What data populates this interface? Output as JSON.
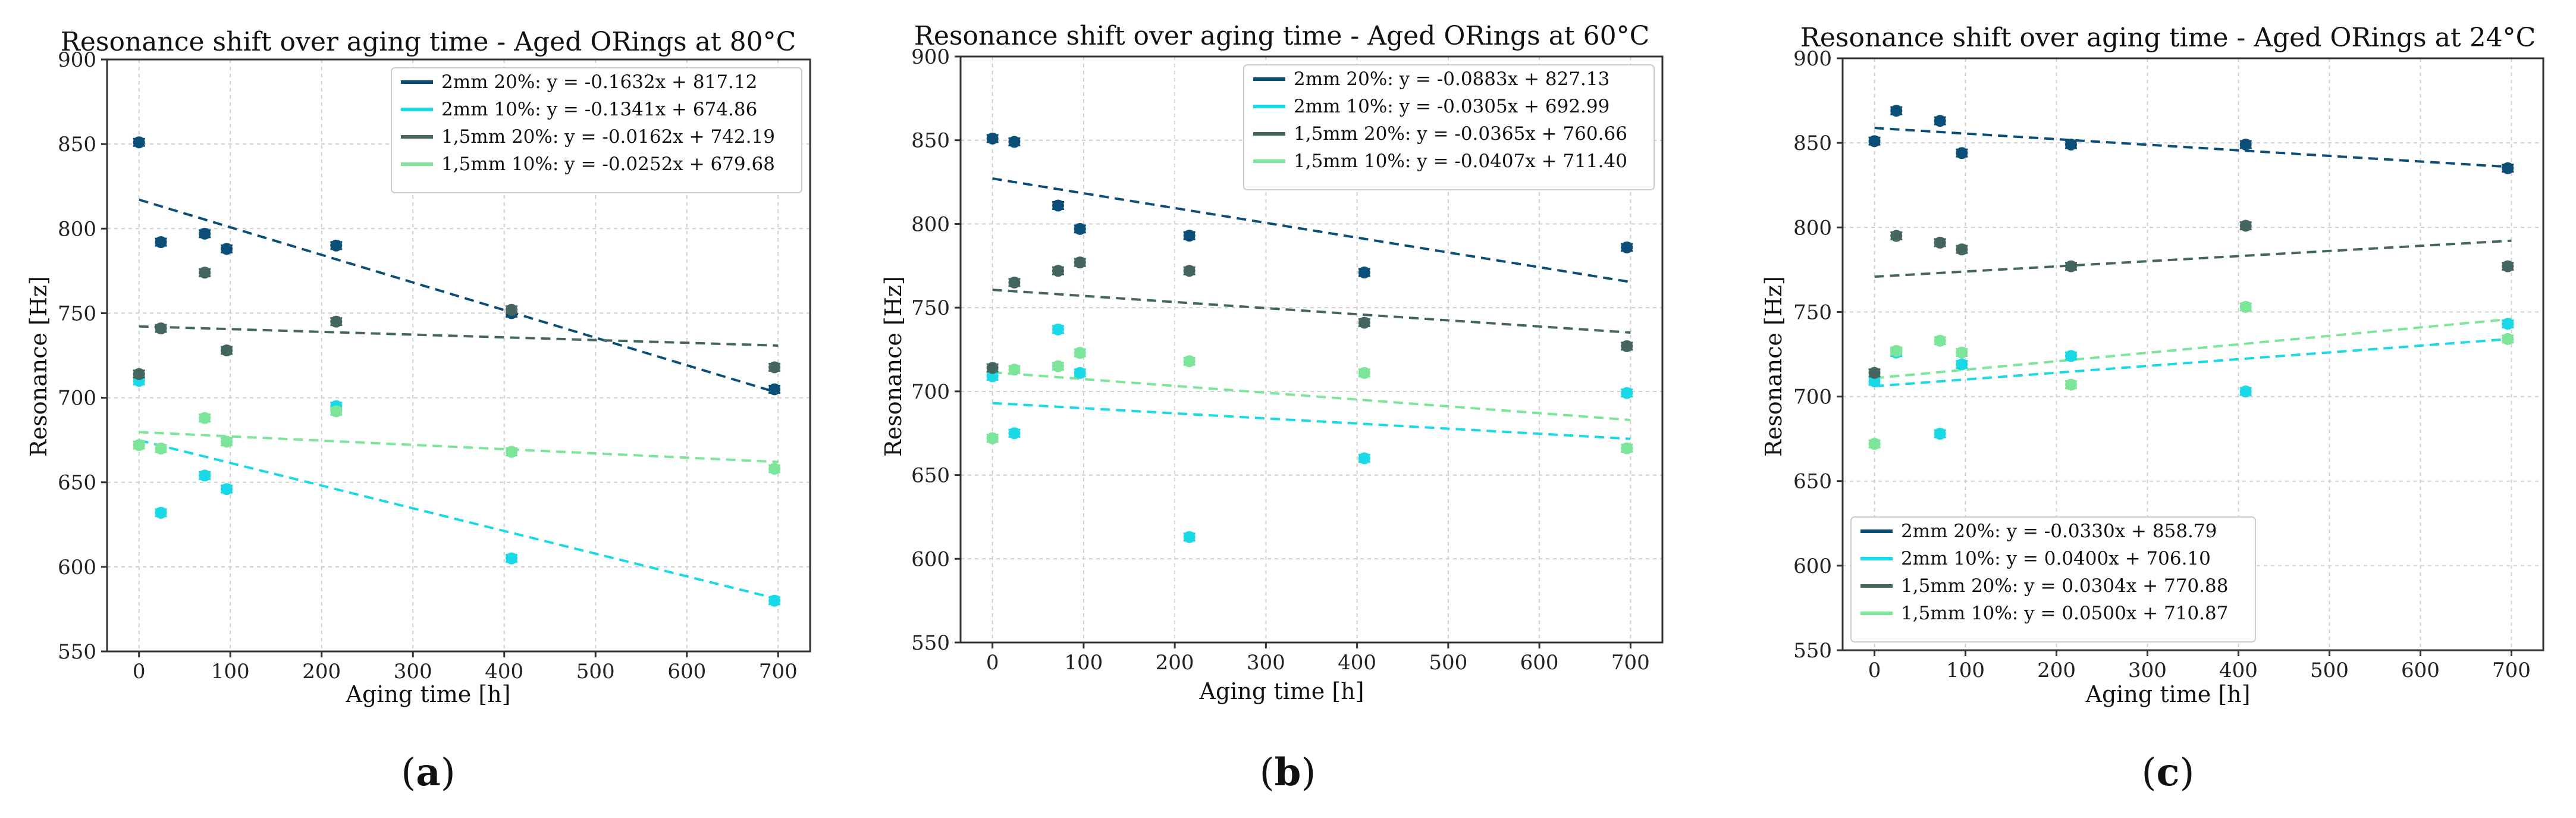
{
  "series_colors": {
    "2mm 20%": "#0b4f78",
    "2mm 10%": "#1ad9e6",
    "1,5mm 20%": "#456660",
    "1,5mm 10%": "#7de59a"
  },
  "chart_data": [
    {
      "type": "scatter",
      "panel_id": "a",
      "caption": "a",
      "title": "Resonance shift over aging time - Aged ORings at 80°C",
      "xlabel": "Aging time [h]",
      "ylabel": "Resonance [Hz]",
      "xlim": [
        -35,
        735
      ],
      "ylim": [
        550,
        900
      ],
      "xticks": [
        0,
        100,
        200,
        300,
        400,
        500,
        600,
        700
      ],
      "yticks": [
        550,
        600,
        650,
        700,
        750,
        800,
        850,
        900
      ],
      "grid": true,
      "legend_position": "top-right",
      "series": [
        {
          "name": "2mm 20%",
          "fit_label": "2mm 20%: y = -0.1632x + 817.12",
          "slope": -0.1632,
          "intercept": 817.12,
          "x": [
            0,
            24,
            72,
            96,
            216,
            408,
            696
          ],
          "y": [
            851,
            792,
            797,
            788,
            790,
            750,
            705
          ]
        },
        {
          "name": "2mm 10%",
          "fit_label": "2mm 10%: y = -0.1341x + 674.86",
          "slope": -0.1341,
          "intercept": 674.86,
          "x": [
            0,
            24,
            72,
            96,
            216,
            408,
            696
          ],
          "y": [
            710,
            632,
            654,
            646,
            695,
            605,
            580
          ]
        },
        {
          "name": "1,5mm 20%",
          "fit_label": "1,5mm 20%: y = -0.0162x + 742.19",
          "slope": -0.0162,
          "intercept": 742.19,
          "x": [
            0,
            24,
            72,
            96,
            216,
            408,
            696
          ],
          "y": [
            714,
            741,
            774,
            728,
            745,
            752,
            718
          ]
        },
        {
          "name": "1,5mm 10%",
          "fit_label": "1,5mm 10%: y = -0.0252x + 679.68",
          "slope": -0.0252,
          "intercept": 679.68,
          "x": [
            0,
            24,
            72,
            96,
            216,
            408,
            696
          ],
          "y": [
            672,
            670,
            688,
            674,
            692,
            668,
            658
          ]
        }
      ]
    },
    {
      "type": "scatter",
      "panel_id": "b",
      "caption": "b",
      "title": "Resonance shift over aging time - Aged ORings at 60°C",
      "xlabel": "Aging time [h]",
      "ylabel": "Resonance [Hz]",
      "xlim": [
        -35,
        735
      ],
      "ylim": [
        550,
        900
      ],
      "xticks": [
        0,
        100,
        200,
        300,
        400,
        500,
        600,
        700
      ],
      "yticks": [
        550,
        600,
        650,
        700,
        750,
        800,
        850,
        900
      ],
      "grid": true,
      "legend_position": "top-right",
      "series": [
        {
          "name": "2mm 20%",
          "fit_label": "2mm 20%: y = -0.0883x + 827.13",
          "slope": -0.0883,
          "intercept": 827.13,
          "x": [
            0,
            24,
            72,
            96,
            216,
            408,
            696
          ],
          "y": [
            851,
            849,
            811,
            797,
            793,
            771,
            786
          ]
        },
        {
          "name": "2mm 10%",
          "fit_label": "2mm 10%: y = -0.0305x + 692.99",
          "slope": -0.0305,
          "intercept": 692.99,
          "x": [
            0,
            24,
            72,
            96,
            216,
            408,
            696
          ],
          "y": [
            709,
            675,
            737,
            711,
            613,
            660,
            699
          ]
        },
        {
          "name": "1,5mm 20%",
          "fit_label": "1,5mm 20%: y = -0.0365x + 760.66",
          "slope": -0.0365,
          "intercept": 760.66,
          "x": [
            0,
            24,
            72,
            96,
            216,
            408,
            696
          ],
          "y": [
            714,
            765,
            772,
            777,
            772,
            741,
            727
          ]
        },
        {
          "name": "1,5mm 10%",
          "fit_label": "1,5mm 10%: y = -0.0407x + 711.40",
          "slope": -0.0407,
          "intercept": 711.4,
          "x": [
            0,
            24,
            72,
            96,
            216,
            408,
            696
          ],
          "y": [
            672,
            713,
            715,
            723,
            718,
            711,
            666
          ]
        }
      ]
    },
    {
      "type": "scatter",
      "panel_id": "c",
      "caption": "c",
      "title": "Resonance shift over aging time - Aged ORings at 24°C",
      "xlabel": "Aging time [h]",
      "ylabel": "Resonance [Hz]",
      "xlim": [
        -35,
        735
      ],
      "ylim": [
        550,
        900
      ],
      "xticks": [
        0,
        100,
        200,
        300,
        400,
        500,
        600,
        700
      ],
      "yticks": [
        550,
        600,
        650,
        700,
        750,
        800,
        850,
        900
      ],
      "grid": true,
      "legend_position": "bottom-left",
      "series": [
        {
          "name": "2mm 20%",
          "fit_label": "2mm 20%: y = -0.0330x + 858.79",
          "slope": -0.033,
          "intercept": 858.79,
          "x": [
            0,
            24,
            72,
            96,
            216,
            408,
            696
          ],
          "y": [
            851,
            869,
            863,
            844,
            849,
            849,
            835
          ]
        },
        {
          "name": "2mm 10%",
          "fit_label": "2mm 10%: y = 0.0400x + 706.10",
          "slope": 0.04,
          "intercept": 706.1,
          "x": [
            0,
            24,
            72,
            96,
            216,
            408,
            696
          ],
          "y": [
            709,
            726,
            678,
            719,
            724,
            703,
            743
          ]
        },
        {
          "name": "1,5mm 20%",
          "fit_label": "1,5mm 20%: y = 0.0304x + 770.88",
          "slope": 0.0304,
          "intercept": 770.88,
          "x": [
            0,
            24,
            72,
            96,
            216,
            408,
            696
          ],
          "y": [
            714,
            795,
            791,
            787,
            777,
            801,
            777
          ]
        },
        {
          "name": "1,5mm 10%",
          "fit_label": "1,5mm 10%: y = 0.0500x + 710.87",
          "slope": 0.05,
          "intercept": 710.87,
          "x": [
            0,
            24,
            72,
            96,
            216,
            408,
            696
          ],
          "y": [
            672,
            727,
            733,
            726,
            707,
            753,
            734
          ]
        }
      ]
    }
  ]
}
